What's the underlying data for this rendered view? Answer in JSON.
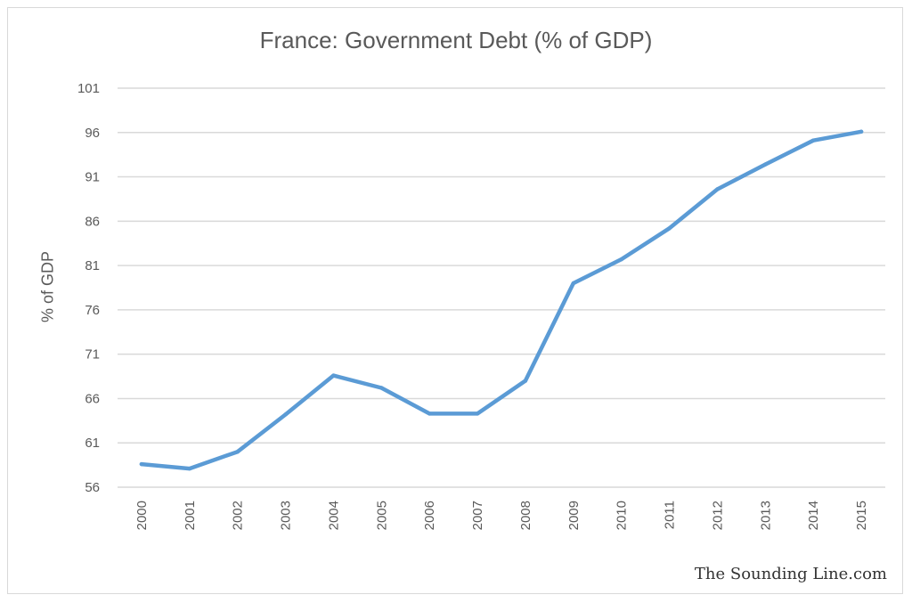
{
  "chart_data": {
    "type": "line",
    "title": "France: Government Debt (% of GDP)",
    "ylabel": "% of GDP",
    "xlabel": "",
    "x": [
      "2000",
      "2001",
      "2002",
      "2003",
      "2004",
      "2005",
      "2006",
      "2007",
      "2008",
      "2009",
      "2010",
      "2011",
      "2012",
      "2013",
      "2014",
      "2015"
    ],
    "series": [
      {
        "values": [
          58.6,
          58.1,
          60.0,
          64.2,
          68.6,
          67.2,
          64.3,
          64.3,
          68.0,
          79.0,
          81.7,
          85.2,
          89.6,
          92.4,
          95.1,
          96.1
        ]
      }
    ],
    "yticks": [
      56,
      61,
      66,
      71,
      76,
      81,
      86,
      91,
      96,
      101
    ],
    "ylim": [
      56,
      101
    ],
    "grid": "horizontal",
    "legend": "none",
    "line_color": "#5b9bd5",
    "grid_color": "#d9d9d9"
  },
  "watermark": "The Sounding Line.com"
}
